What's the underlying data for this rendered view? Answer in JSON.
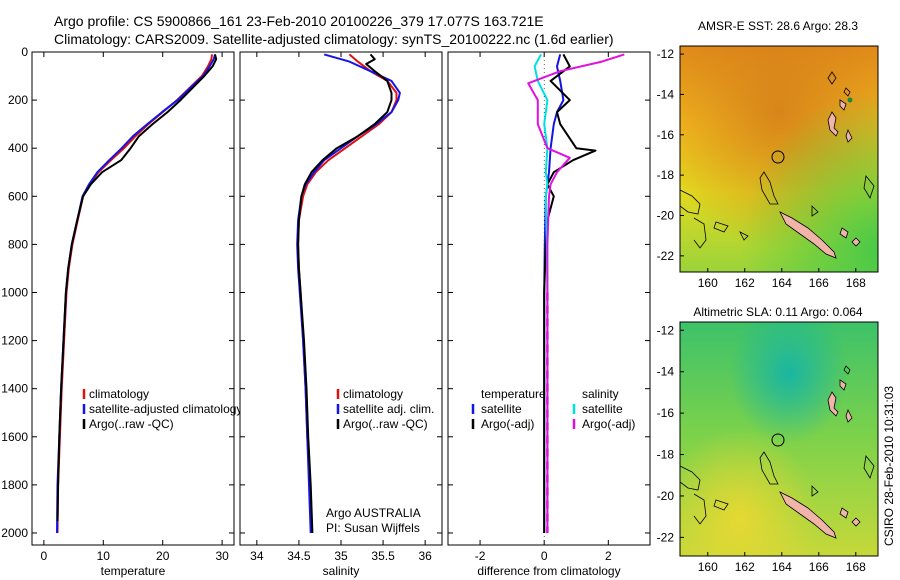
{
  "header": {
    "line1": "Argo profile: CS 5900866_161 23-Feb-2010 20100226_379 17.077S 163.721E",
    "line2": "Climatology: CARS2009. Satellite-adjusted climatology: synTS_20100222.nc (1.6d earlier)"
  },
  "colors": {
    "climatology": "#e01010",
    "satellite": "#1414e6",
    "argo": "#000000",
    "sal_satellite": "#00e0e0",
    "sal_argo": "#e010e0"
  },
  "chart_data": [
    {
      "id": "temperature",
      "type": "line",
      "xlabel": "temperature",
      "xlim": [
        -2,
        32
      ],
      "ylim": [
        0,
        2050
      ],
      "xticks": [
        0,
        10,
        20,
        30
      ],
      "yticks": [
        0,
        200,
        400,
        600,
        800,
        1000,
        1200,
        1400,
        1600,
        1800,
        2000
      ],
      "legend": [
        "climatology",
        "satellite-adjusted climatology",
        "Argo(..raw -QC)"
      ],
      "series": [
        {
          "name": "climatology",
          "color": "#e01010",
          "points": [
            [
              28.3,
              10
            ],
            [
              28.2,
              30
            ],
            [
              27.6,
              60
            ],
            [
              26.6,
              100
            ],
            [
              24.5,
              150
            ],
            [
              22.4,
              200
            ],
            [
              20.0,
              250
            ],
            [
              17.6,
              300
            ],
            [
              15.4,
              350
            ],
            [
              13.5,
              400
            ],
            [
              11.3,
              450
            ],
            [
              9.2,
              500
            ],
            [
              7.7,
              550
            ],
            [
              6.6,
              600
            ],
            [
              5.7,
              700
            ],
            [
              4.8,
              800
            ],
            [
              4.2,
              900
            ],
            [
              3.8,
              1000
            ],
            [
              3.4,
              1200
            ],
            [
              3.0,
              1400
            ],
            [
              2.7,
              1600
            ],
            [
              2.4,
              1800
            ],
            [
              2.3,
              2000
            ]
          ]
        },
        {
          "name": "satellite",
          "color": "#1414e6",
          "points": [
            [
              28.8,
              10
            ],
            [
              28.6,
              30
            ],
            [
              27.9,
              60
            ],
            [
              26.8,
              100
            ],
            [
              24.6,
              150
            ],
            [
              22.5,
              200
            ],
            [
              19.9,
              250
            ],
            [
              17.4,
              300
            ],
            [
              15.0,
              350
            ],
            [
              13.1,
              400
            ],
            [
              11.0,
              450
            ],
            [
              9.0,
              500
            ],
            [
              7.6,
              550
            ],
            [
              6.5,
              600
            ],
            [
              5.6,
              700
            ],
            [
              4.7,
              800
            ],
            [
              4.1,
              900
            ],
            [
              3.7,
              1000
            ],
            [
              3.3,
              1200
            ],
            [
              2.9,
              1400
            ],
            [
              2.6,
              1600
            ],
            [
              2.3,
              1800
            ],
            [
              2.2,
              2000
            ]
          ]
        },
        {
          "name": "Argo",
          "color": "#000000",
          "points": [
            [
              28.8,
              10
            ],
            [
              29.0,
              30
            ],
            [
              28.4,
              60
            ],
            [
              27.0,
              100
            ],
            [
              25.0,
              150
            ],
            [
              23.0,
              200
            ],
            [
              20.8,
              250
            ],
            [
              18.3,
              300
            ],
            [
              16.0,
              350
            ],
            [
              14.6,
              400
            ],
            [
              13.0,
              450
            ],
            [
              9.8,
              500
            ],
            [
              7.9,
              550
            ],
            [
              6.6,
              600
            ],
            [
              5.6,
              700
            ],
            [
              4.7,
              800
            ],
            [
              4.1,
              900
            ],
            [
              3.7,
              1000
            ],
            [
              3.3,
              1200
            ],
            [
              2.9,
              1400
            ],
            [
              2.6,
              1600
            ],
            [
              2.4,
              1800
            ],
            [
              2.3,
              1950
            ]
          ]
        }
      ]
    },
    {
      "id": "salinity",
      "type": "line",
      "xlabel": "salinity",
      "xlim": [
        33.8,
        36.2
      ],
      "ylim": [
        0,
        2050
      ],
      "xticks": [
        34,
        34.5,
        35,
        35.5,
        36
      ],
      "legend": [
        "climatology",
        "satellite adj. clim.",
        "Argo(..raw -QC)"
      ],
      "series": [
        {
          "name": "climatology",
          "color": "#e01010",
          "points": [
            [
              35.1,
              10
            ],
            [
              35.2,
              40
            ],
            [
              35.35,
              80
            ],
            [
              35.55,
              120
            ],
            [
              35.66,
              170
            ],
            [
              35.66,
              200
            ],
            [
              35.6,
              250
            ],
            [
              35.45,
              300
            ],
            [
              35.25,
              350
            ],
            [
              35.05,
              400
            ],
            [
              34.85,
              450
            ],
            [
              34.7,
              500
            ],
            [
              34.6,
              550
            ],
            [
              34.55,
              600
            ],
            [
              34.5,
              700
            ],
            [
              34.49,
              800
            ],
            [
              34.5,
              900
            ],
            [
              34.52,
              1000
            ],
            [
              34.55,
              1200
            ],
            [
              34.58,
              1400
            ],
            [
              34.6,
              1600
            ],
            [
              34.63,
              1800
            ],
            [
              34.65,
              2000
            ]
          ]
        },
        {
          "name": "satellite",
          "color": "#1414e6",
          "points": [
            [
              34.8,
              10
            ],
            [
              35.1,
              40
            ],
            [
              35.35,
              80
            ],
            [
              35.6,
              120
            ],
            [
              35.7,
              170
            ],
            [
              35.68,
              200
            ],
            [
              35.6,
              250
            ],
            [
              35.42,
              300
            ],
            [
              35.2,
              350
            ],
            [
              35.0,
              400
            ],
            [
              34.8,
              450
            ],
            [
              34.68,
              500
            ],
            [
              34.58,
              550
            ],
            [
              34.53,
              600
            ],
            [
              34.49,
              700
            ],
            [
              34.48,
              800
            ],
            [
              34.49,
              900
            ],
            [
              34.51,
              1000
            ],
            [
              34.55,
              1200
            ],
            [
              34.58,
              1400
            ],
            [
              34.6,
              1600
            ],
            [
              34.62,
              1800
            ],
            [
              34.64,
              2000
            ]
          ]
        },
        {
          "name": "Argo",
          "color": "#000000",
          "points": [
            [
              35.35,
              10
            ],
            [
              35.4,
              30
            ],
            [
              35.3,
              50
            ],
            [
              35.4,
              80
            ],
            [
              35.55,
              120
            ],
            [
              35.6,
              170
            ],
            [
              35.6,
              200
            ],
            [
              35.55,
              250
            ],
            [
              35.4,
              300
            ],
            [
              35.2,
              350
            ],
            [
              34.95,
              400
            ],
            [
              34.78,
              450
            ],
            [
              34.65,
              500
            ],
            [
              34.57,
              550
            ],
            [
              34.53,
              600
            ],
            [
              34.5,
              700
            ],
            [
              34.49,
              800
            ],
            [
              34.5,
              900
            ],
            [
              34.52,
              1000
            ],
            [
              34.56,
              1200
            ],
            [
              34.59,
              1400
            ],
            [
              34.61,
              1600
            ],
            [
              34.64,
              1800
            ],
            [
              34.66,
              2000
            ]
          ]
        }
      ]
    },
    {
      "id": "difference",
      "type": "line",
      "xlabel": "difference from climatology",
      "xlim": [
        -3,
        3.3
      ],
      "ylim": [
        0,
        2050
      ],
      "xticks": [
        -2,
        0,
        2
      ],
      "legend_temperature": {
        "title": "temperature",
        "items": [
          "satellite",
          "Argo(-adj)"
        ]
      },
      "legend_salinity": {
        "title": "salinity",
        "items": [
          "satellite",
          "Argo(-adj)"
        ]
      },
      "series": [
        {
          "name": "temperature satellite",
          "color": "#1414e6",
          "points": [
            [
              0.5,
              10
            ],
            [
              0.4,
              60
            ],
            [
              0.5,
              120
            ],
            [
              0.6,
              200
            ],
            [
              0.4,
              250
            ],
            [
              0.3,
              300
            ],
            [
              0.2,
              400
            ],
            [
              0.15,
              500
            ],
            [
              0.1,
              550
            ],
            [
              0.05,
              600
            ],
            [
              0.02,
              800
            ],
            [
              0.0,
              1000
            ],
            [
              0.0,
              2000
            ]
          ]
        },
        {
          "name": "temperature Argo(-adj)",
          "color": "#000000",
          "points": [
            [
              0.6,
              10
            ],
            [
              0.8,
              60
            ],
            [
              0.2,
              120
            ],
            [
              0.8,
              200
            ],
            [
              0.4,
              250
            ],
            [
              0.5,
              300
            ],
            [
              1.0,
              400
            ],
            [
              1.6,
              410
            ],
            [
              0.9,
              450
            ],
            [
              0.3,
              500
            ],
            [
              0.1,
              550
            ],
            [
              0.3,
              600
            ],
            [
              0.1,
              700
            ],
            [
              0.05,
              800
            ],
            [
              0.0,
              1000
            ],
            [
              0.0,
              2000
            ]
          ]
        },
        {
          "name": "salinity satellite",
          "color": "#00e0e0",
          "points": [
            [
              -0.1,
              10
            ],
            [
              -0.3,
              60
            ],
            [
              -0.2,
              120
            ],
            [
              0.1,
              200
            ],
            [
              0.0,
              300
            ],
            [
              0.1,
              400
            ],
            [
              0.05,
              500
            ],
            [
              0.1,
              550
            ],
            [
              0.05,
              600
            ],
            [
              0.08,
              800
            ],
            [
              0.1,
              1000
            ],
            [
              0.1,
              2000
            ]
          ]
        },
        {
          "name": "salinity Argo(-adj)",
          "color": "#e010e0",
          "points": [
            [
              2.5,
              10
            ],
            [
              1.8,
              40
            ],
            [
              0.5,
              80
            ],
            [
              -0.5,
              130
            ],
            [
              -0.2,
              200
            ],
            [
              -0.2,
              300
            ],
            [
              0.1,
              400
            ],
            [
              0.8,
              440
            ],
            [
              0.4,
              500
            ],
            [
              0.2,
              550
            ],
            [
              0.15,
              600
            ],
            [
              0.1,
              800
            ],
            [
              0.1,
              1000
            ],
            [
              0.1,
              2000
            ]
          ]
        }
      ]
    }
  ],
  "maps": {
    "sst": {
      "title": "AMSR-E SST: 28.6 Argo: 28.3",
      "xticks": [
        "160",
        "162",
        "164",
        "166",
        "168"
      ],
      "yticks": [
        "-12",
        "-14",
        "-16",
        "-18",
        "-20",
        "-22"
      ]
    },
    "sla": {
      "title": "Altimetric SLA: 0.11 Argo: 0.064",
      "xticks": [
        "160",
        "162",
        "164",
        "166",
        "168"
      ],
      "yticks": [
        "-12",
        "-14",
        "-16",
        "-18",
        "-20",
        "-22"
      ]
    }
  },
  "footer": {
    "argo_org": "Argo AUSTRALIA",
    "pi": "PI: Susan Wijffels",
    "stamp": "CSIRO 28-Feb-2010 10:31:03"
  }
}
